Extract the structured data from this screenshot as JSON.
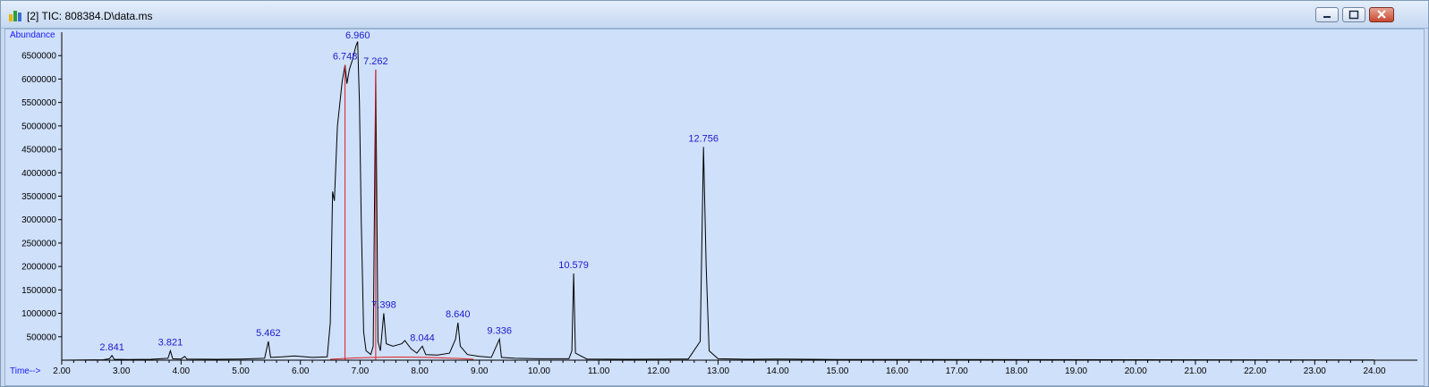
{
  "window": {
    "title": "[2] TIC: 808384.D\\data.ms",
    "icons": [
      "chromatogram-icon",
      "minimize-icon",
      "maximize-icon",
      "close-icon"
    ]
  },
  "chart_data": {
    "type": "line",
    "ylabel": "Abundance",
    "xlabel": "Time-->",
    "xlim": [
      2.0,
      24.0
    ],
    "ylim": [
      0,
      7000000
    ],
    "x_ticks": [
      2.0,
      3.0,
      4.0,
      5.0,
      6.0,
      7.0,
      8.0,
      9.0,
      10.0,
      11.0,
      12.0,
      13.0,
      14.0,
      15.0,
      16.0,
      17.0,
      18.0,
      19.0,
      20.0,
      21.0,
      22.0,
      23.0,
      24.0
    ],
    "x_tick_labels": [
      "2.00",
      "3.00",
      "4.00",
      "5.00",
      "6.00",
      "7.00",
      "8.00",
      "9.00",
      "10.00",
      "11.00",
      "12.00",
      "13.00",
      "14.00",
      "15.00",
      "16.00",
      "17.00",
      "18.00",
      "19.00",
      "20.00",
      "21.00",
      "22.00",
      "23.00",
      "24.00"
    ],
    "y_ticks": [
      500000,
      1000000,
      1500000,
      2000000,
      2500000,
      3000000,
      3500000,
      4000000,
      4500000,
      5000000,
      5500000,
      6000000,
      6500000
    ],
    "y_tick_labels": [
      "500000",
      "1000000",
      "1500000",
      "2000000",
      "2500000",
      "3000000",
      "3500000",
      "4000000",
      "4500000",
      "5000000",
      "5500000",
      "6000000",
      "6500000"
    ],
    "peak_labels": [
      {
        "rt": 2.841,
        "label": "2.841",
        "abundance": 100000
      },
      {
        "rt": 3.821,
        "label": "3.821",
        "abundance": 200000
      },
      {
        "rt": 5.462,
        "label": "5.462",
        "abundance": 400000
      },
      {
        "rt": 6.748,
        "label": "6.748",
        "abundance": 6300000
      },
      {
        "rt": 6.96,
        "label": "6.960",
        "abundance": 6800000
      },
      {
        "rt": 7.262,
        "label": "7.262",
        "abundance": 6200000
      },
      {
        "rt": 7.398,
        "label": "7.398",
        "abundance": 1000000
      },
      {
        "rt": 8.044,
        "label": "8.044",
        "abundance": 300000
      },
      {
        "rt": 8.64,
        "label": "8.640",
        "abundance": 800000
      },
      {
        "rt": 9.336,
        "label": "9.336",
        "abundance": 450000
      },
      {
        "rt": 10.579,
        "label": "10.579",
        "abundance": 1850000
      },
      {
        "rt": 12.756,
        "label": "12.756",
        "abundance": 4550000
      }
    ],
    "series": [
      {
        "color": "#000000",
        "points": [
          [
            2.0,
            0
          ],
          [
            2.7,
            10000
          ],
          [
            2.8,
            30000
          ],
          [
            2.841,
            100000
          ],
          [
            2.88,
            20000
          ],
          [
            3.1,
            15000
          ],
          [
            3.5,
            20000
          ],
          [
            3.78,
            40000
          ],
          [
            3.821,
            200000
          ],
          [
            3.86,
            30000
          ],
          [
            4.0,
            25000
          ],
          [
            4.06,
            80000
          ],
          [
            4.1,
            25000
          ],
          [
            4.6,
            20000
          ],
          [
            5.0,
            25000
          ],
          [
            5.4,
            40000
          ],
          [
            5.462,
            400000
          ],
          [
            5.5,
            60000
          ],
          [
            5.7,
            70000
          ],
          [
            5.9,
            90000
          ],
          [
            6.2,
            60000
          ],
          [
            6.45,
            70000
          ],
          [
            6.5,
            800000
          ],
          [
            6.54,
            3600000
          ],
          [
            6.57,
            3400000
          ],
          [
            6.62,
            5000000
          ],
          [
            6.7,
            5950000
          ],
          [
            6.748,
            6300000
          ],
          [
            6.78,
            5900000
          ],
          [
            6.82,
            6200000
          ],
          [
            6.87,
            6400000
          ],
          [
            6.93,
            6700000
          ],
          [
            6.96,
            6800000
          ],
          [
            6.99,
            5500000
          ],
          [
            7.02,
            3000000
          ],
          [
            7.06,
            600000
          ],
          [
            7.1,
            200000
          ],
          [
            7.18,
            120000
          ],
          [
            7.22,
            300000
          ],
          [
            7.262,
            6200000
          ],
          [
            7.3,
            400000
          ],
          [
            7.34,
            200000
          ],
          [
            7.398,
            1000000
          ],
          [
            7.44,
            350000
          ],
          [
            7.55,
            300000
          ],
          [
            7.7,
            350000
          ],
          [
            7.75,
            420000
          ],
          [
            7.85,
            250000
          ],
          [
            7.95,
            150000
          ],
          [
            8.044,
            300000
          ],
          [
            8.1,
            120000
          ],
          [
            8.3,
            110000
          ],
          [
            8.5,
            150000
          ],
          [
            8.6,
            450000
          ],
          [
            8.64,
            800000
          ],
          [
            8.68,
            300000
          ],
          [
            8.8,
            120000
          ],
          [
            9.0,
            80000
          ],
          [
            9.2,
            60000
          ],
          [
            9.336,
            450000
          ],
          [
            9.37,
            60000
          ],
          [
            9.6,
            40000
          ],
          [
            10.0,
            30000
          ],
          [
            10.5,
            30000
          ],
          [
            10.55,
            200000
          ],
          [
            10.579,
            1850000
          ],
          [
            10.61,
            150000
          ],
          [
            10.8,
            25000
          ],
          [
            11.5,
            20000
          ],
          [
            12.5,
            25000
          ],
          [
            12.7,
            400000
          ],
          [
            12.756,
            4550000
          ],
          [
            12.8,
            2000000
          ],
          [
            12.85,
            200000
          ],
          [
            13.0,
            30000
          ],
          [
            13.5,
            20000
          ],
          [
            14.0,
            25000
          ],
          [
            15.0,
            15000
          ],
          [
            24.0,
            5000
          ]
        ]
      }
    ]
  }
}
